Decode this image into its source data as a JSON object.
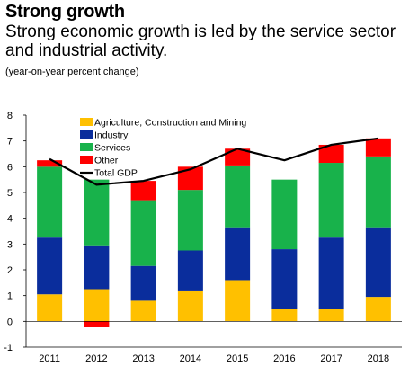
{
  "header": {
    "title": "Strong growth",
    "subtitle": "Strong economic growth is led by the service sector and industrial activity.",
    "units": "(year-on-year percent change)"
  },
  "chart_data": {
    "type": "bar",
    "stacked": true,
    "categories": [
      "2011",
      "2012",
      "2013",
      "2014",
      "2015",
      "2016",
      "2017",
      "2018"
    ],
    "series": [
      {
        "name": "Agriculture, Construction and Mining",
        "kind": "bar",
        "color": "#ffc000",
        "values": [
          1.05,
          1.25,
          0.8,
          1.2,
          1.6,
          0.5,
          0.5,
          0.95
        ]
      },
      {
        "name": "Industry",
        "kind": "bar",
        "color": "#0a2d9c",
        "values": [
          2.2,
          1.7,
          1.35,
          1.55,
          2.05,
          2.3,
          2.75,
          2.7
        ]
      },
      {
        "name": "Services",
        "kind": "bar",
        "color": "#18b24b",
        "values": [
          2.75,
          2.55,
          2.55,
          2.35,
          2.4,
          2.7,
          2.9,
          2.75
        ]
      },
      {
        "name": "Other",
        "kind": "bar",
        "color": "#ff0000",
        "values": [
          0.25,
          -0.2,
          0.75,
          0.9,
          0.65,
          0.0,
          0.7,
          0.7
        ]
      },
      {
        "name": "Total GDP",
        "kind": "line",
        "color": "#000000",
        "values": [
          6.3,
          5.3,
          5.45,
          5.9,
          6.7,
          6.25,
          6.85,
          7.1
        ]
      }
    ],
    "ylim": [
      -1,
      8
    ],
    "yticks": [
      "-1",
      "0",
      "1",
      "2",
      "3",
      "4",
      "5",
      "6",
      "7",
      "8"
    ],
    "xlabel": "",
    "ylabel": "",
    "legend_position": "top-left",
    "grid": false
  }
}
